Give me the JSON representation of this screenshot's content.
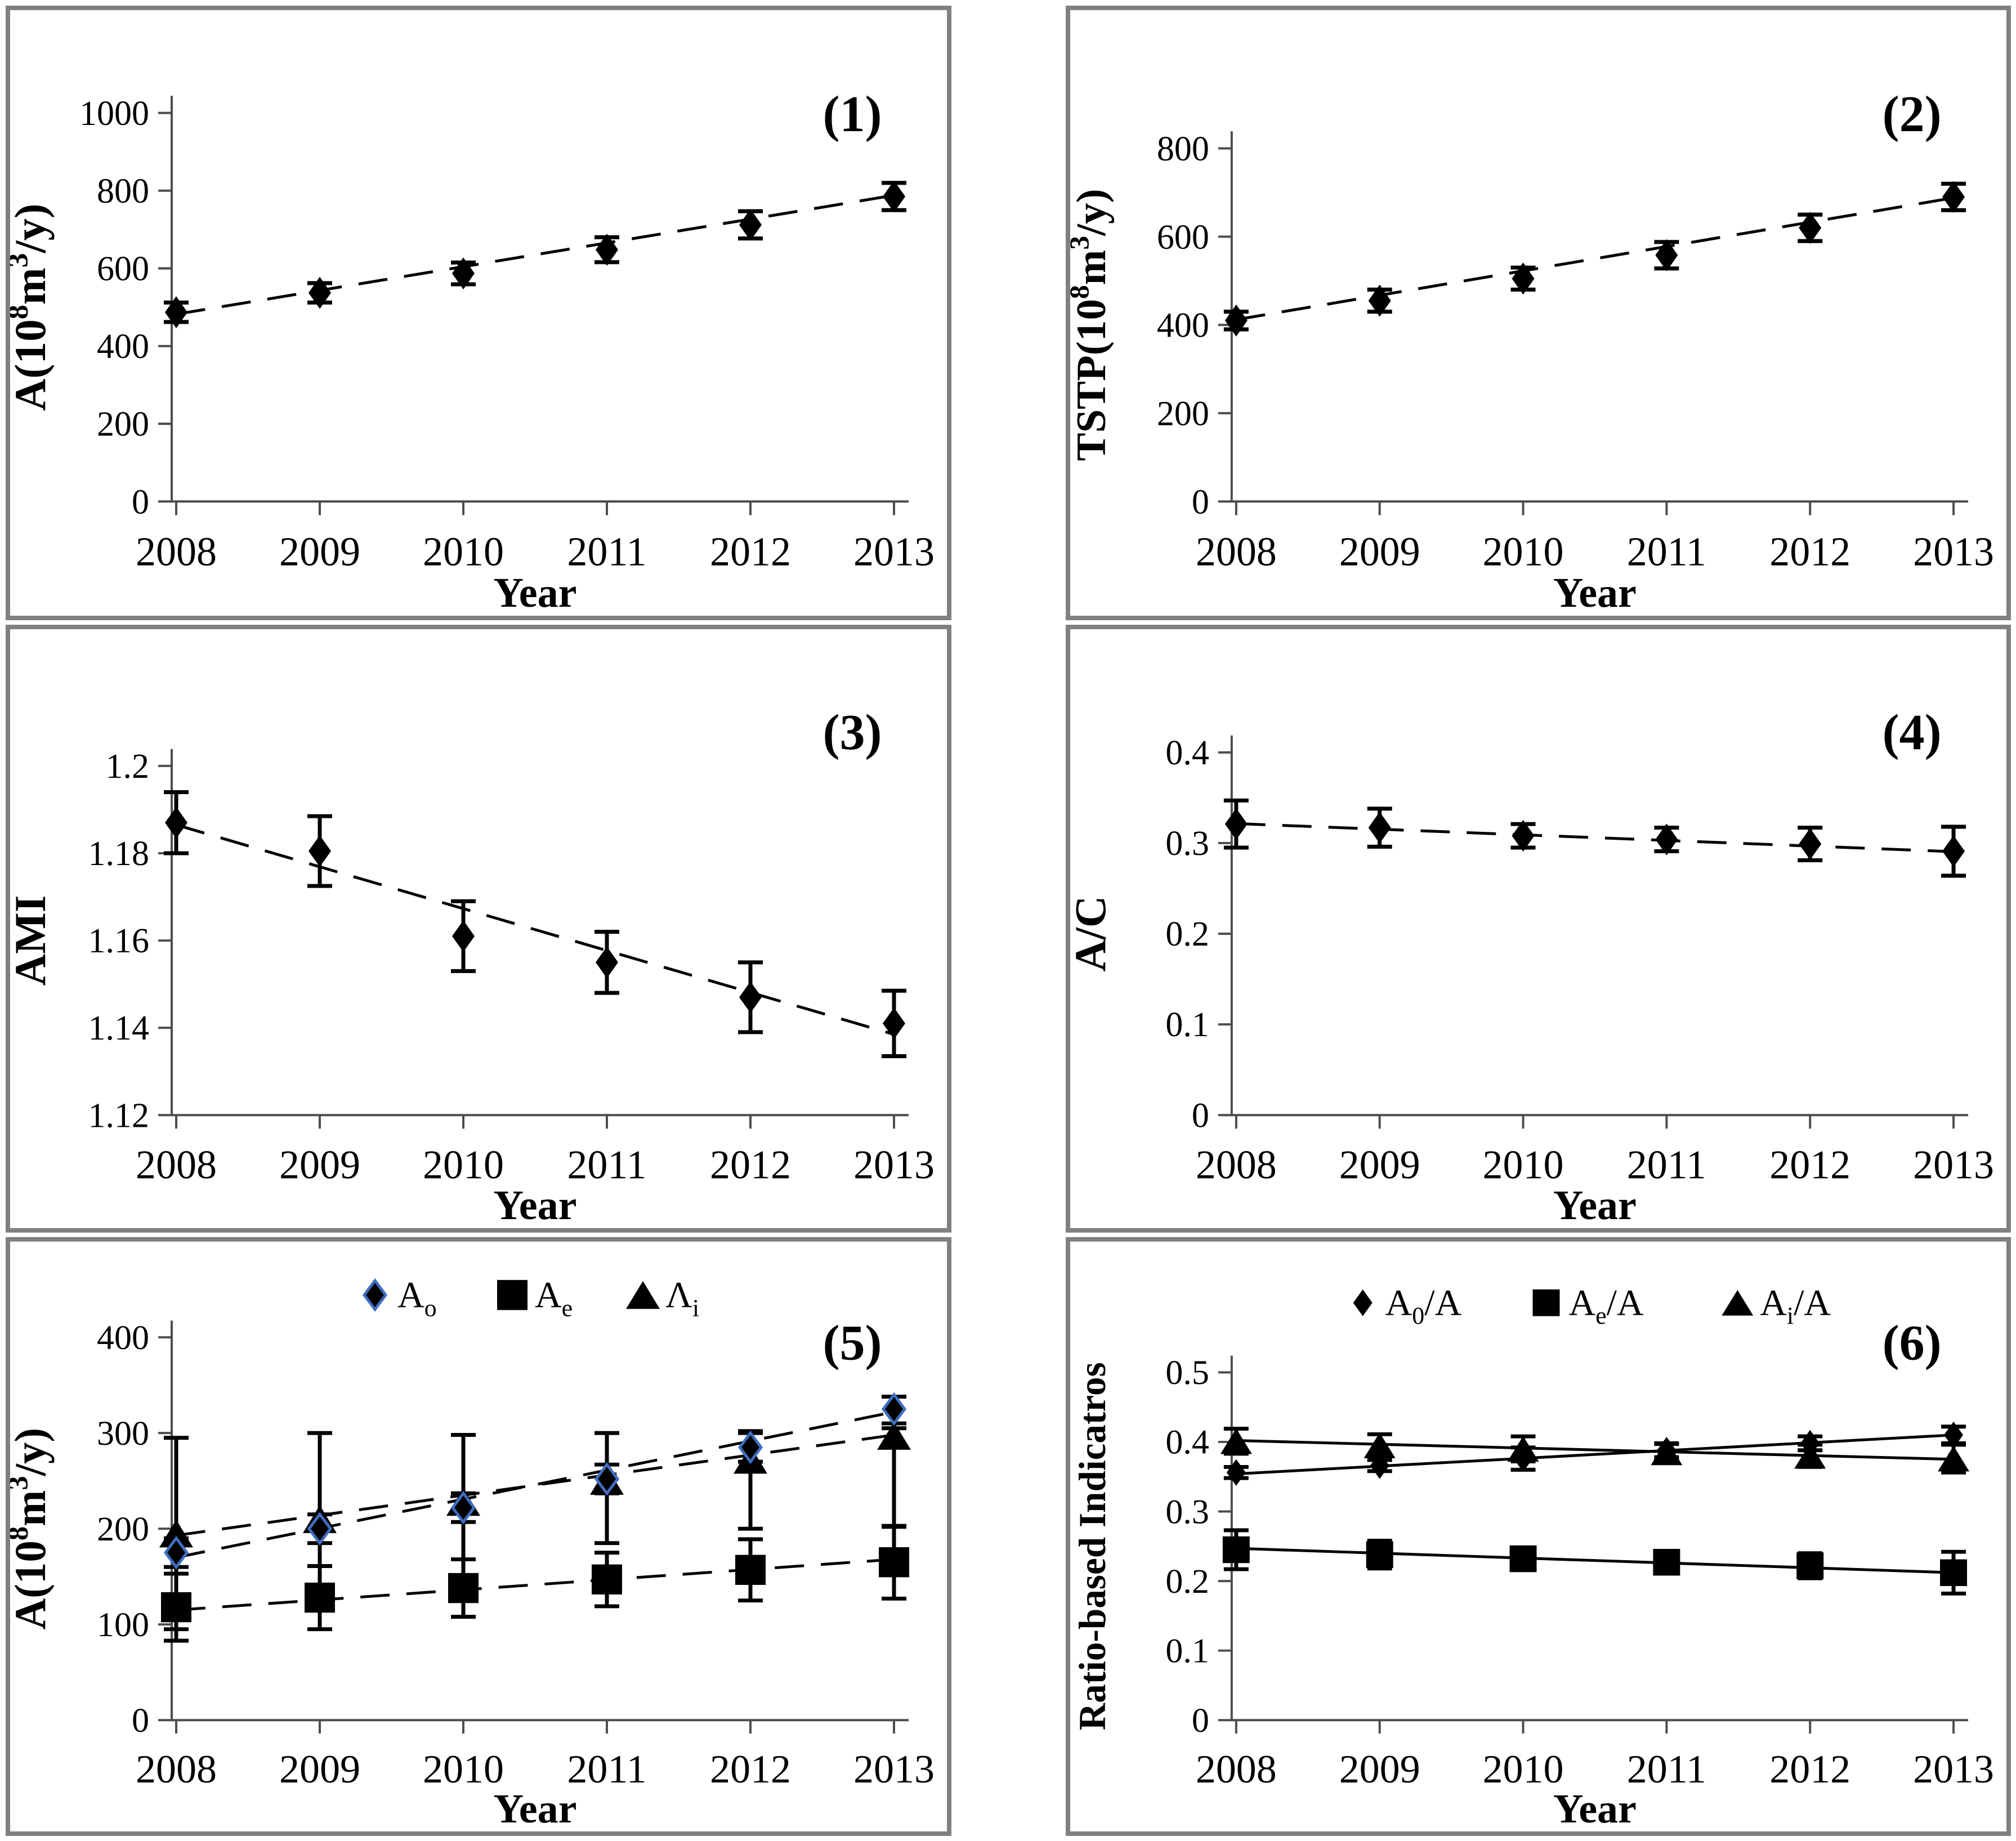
{
  "figure": {
    "background": "#ffffff",
    "panel_border_color": "#808080",
    "axis_color": "#4d4d4d",
    "ink_color": "#000000",
    "diamond_edge_blue": "#3f6ec0"
  },
  "chart_data": [
    {
      "panel_label": "(1)",
      "type": "line",
      "xlabel": "Year",
      "ylabel_segments": [
        {
          "t": "A(10"
        },
        {
          "t": "8",
          "sup": true
        },
        {
          "t": "m"
        },
        {
          "t": "3",
          "sup": true
        },
        {
          "t": "/y)"
        }
      ],
      "x_categories": [
        "2008",
        "2009",
        "2010",
        "2011",
        "2012",
        "2013"
      ],
      "ylim": [
        0,
        1000
      ],
      "yticks": [
        {
          "v": 0,
          "t": "0"
        },
        {
          "v": 200,
          "t": "200"
        },
        {
          "v": 400,
          "t": "400"
        },
        {
          "v": 600,
          "t": "600"
        },
        {
          "v": 800,
          "t": "800"
        },
        {
          "v": 1000,
          "t": "1000"
        }
      ],
      "grid": false,
      "legend": null,
      "series": [
        {
          "name": "A",
          "marker": "diamond",
          "values": [
            487,
            537,
            587,
            648,
            712,
            785
          ],
          "err_lo": [
            25,
            25,
            28,
            32,
            35,
            35
          ],
          "err_hi": [
            25,
            25,
            28,
            32,
            35,
            35
          ],
          "trend": {
            "from": 482,
            "to": 788,
            "dashed": true
          }
        }
      ]
    },
    {
      "panel_label": "(2)",
      "type": "line",
      "xlabel": "Year",
      "ylabel_segments": [
        {
          "t": "TSTP(10"
        },
        {
          "t": "8",
          "sup": true
        },
        {
          "t": "m"
        },
        {
          "t": "3",
          "sup": true
        },
        {
          "t": "/y)"
        }
      ],
      "x_categories": [
        "2008",
        "2009",
        "2010",
        "2011",
        "2012",
        "2013"
      ],
      "ylim": [
        0,
        800
      ],
      "yticks": [
        {
          "v": 0,
          "t": "0"
        },
        {
          "v": 200,
          "t": "200"
        },
        {
          "v": 400,
          "t": "400"
        },
        {
          "v": 600,
          "t": "600"
        },
        {
          "v": 800,
          "t": "800"
        }
      ],
      "grid": false,
      "legend": null,
      "series": [
        {
          "name": "TSTP",
          "marker": "diamond",
          "values": [
            410,
            455,
            505,
            558,
            620,
            690
          ],
          "err_lo": [
            20,
            25,
            25,
            30,
            30,
            30
          ],
          "err_hi": [
            20,
            25,
            25,
            30,
            30,
            30
          ],
          "trend": {
            "from": 412,
            "to": 688,
            "dashed": true
          }
        }
      ]
    },
    {
      "panel_label": "(3)",
      "type": "line",
      "xlabel": "Year",
      "ylabel_segments": [
        {
          "t": "AMI"
        }
      ],
      "x_categories": [
        "2008",
        "2009",
        "2010",
        "2011",
        "2012",
        "2013"
      ],
      "ylim": [
        1.12,
        1.2
      ],
      "yticks": [
        {
          "v": 1.12,
          "t": "1.12"
        },
        {
          "v": 1.14,
          "t": "1.14"
        },
        {
          "v": 1.16,
          "t": "1.16"
        },
        {
          "v": 1.18,
          "t": "1.18"
        },
        {
          "v": 1.2,
          "t": "1.2"
        }
      ],
      "grid": false,
      "legend": null,
      "series": [
        {
          "name": "AMI",
          "marker": "diamond",
          "values": [
            1.187,
            1.1805,
            1.161,
            1.155,
            1.147,
            1.141
          ],
          "err_lo": [
            0.007,
            0.008,
            0.008,
            0.007,
            0.008,
            0.0075
          ],
          "err_hi": [
            0.007,
            0.008,
            0.008,
            0.007,
            0.008,
            0.0075
          ],
          "trend": {
            "from": 1.1865,
            "to": 1.1385,
            "dashed": true
          }
        }
      ]
    },
    {
      "panel_label": "(4)",
      "type": "line",
      "xlabel": "Year",
      "ylabel_segments": [
        {
          "t": "A/C"
        }
      ],
      "x_categories": [
        "2008",
        "2009",
        "2010",
        "2011",
        "2012",
        "2013"
      ],
      "ylim": [
        0,
        0.4
      ],
      "yticks": [
        {
          "v": 0,
          "t": "0"
        },
        {
          "v": 0.1,
          "t": "0.1"
        },
        {
          "v": 0.2,
          "t": "0.2"
        },
        {
          "v": 0.3,
          "t": "0.3"
        },
        {
          "v": 0.4,
          "t": "0.4"
        }
      ],
      "grid": false,
      "legend": null,
      "series": [
        {
          "name": "A/C",
          "marker": "diamond",
          "values": [
            0.321,
            0.317,
            0.308,
            0.304,
            0.299,
            0.291
          ],
          "err_lo": [
            0.026,
            0.021,
            0.013,
            0.013,
            0.018,
            0.027
          ],
          "err_hi": [
            0.026,
            0.021,
            0.013,
            0.013,
            0.018,
            0.027
          ],
          "trend": {
            "from": 0.3215,
            "to": 0.2905,
            "dashed": true
          }
        }
      ]
    },
    {
      "panel_label": "(5)",
      "type": "line",
      "xlabel": "Year",
      "ylabel_segments": [
        {
          "t": "A(10"
        },
        {
          "t": "8",
          "sup": true
        },
        {
          "t": "m"
        },
        {
          "t": "3",
          "sup": true
        },
        {
          "t": "/y)"
        }
      ],
      "x_categories": [
        "2008",
        "2009",
        "2010",
        "2011",
        "2012",
        "2013"
      ],
      "ylim": [
        0,
        400
      ],
      "yticks": [
        {
          "v": 0,
          "t": "0"
        },
        {
          "v": 100,
          "t": "100"
        },
        {
          "v": 200,
          "t": "200"
        },
        {
          "v": 300,
          "t": "300"
        },
        {
          "v": 400,
          "t": "400"
        }
      ],
      "grid": false,
      "legend": [
        {
          "marker": "diamond",
          "marker_stroke": "#3f6ec0",
          "label_segments": [
            {
              "t": "A"
            },
            {
              "t": "o",
              "sub": true
            }
          ]
        },
        {
          "marker": "square",
          "label_segments": [
            {
              "t": "A"
            },
            {
              "t": "e",
              "sub": true
            }
          ]
        },
        {
          "marker": "triangle",
          "label_segments": [
            {
              "t": "Λ"
            },
            {
              "t": "i",
              "sub": true
            }
          ]
        }
      ],
      "series": [
        {
          "name": "Ai",
          "marker": "triangle",
          "values": [
            195,
            210,
            228,
            250,
            272,
            297
          ],
          "err_lo": [
            100,
            95,
            90,
            65,
            72,
            95
          ],
          "err_hi": [
            100,
            90,
            70,
            50,
            30,
            8
          ],
          "trend": {
            "from": 193,
            "to": 298,
            "dashed": true
          }
        },
        {
          "name": "Ae",
          "marker": "square",
          "values": [
            118,
            128,
            138,
            147,
            157,
            165
          ],
          "err_lo": [
            35,
            33,
            30,
            28,
            32,
            38
          ],
          "err_hi": [
            35,
            33,
            30,
            28,
            32,
            38
          ],
          "trend": {
            "from": 115,
            "to": 168,
            "dashed": true
          }
        },
        {
          "name": "Ao",
          "marker": "diamond",
          "marker_stroke": "#3f6ec0",
          "values": [
            175,
            200,
            222,
            252,
            285,
            325
          ],
          "err_lo": [
            15,
            15,
            15,
            15,
            15,
            15
          ],
          "err_hi": [
            15,
            15,
            15,
            15,
            15,
            13
          ],
          "trend": {
            "from": 170,
            "to": 322,
            "dashed": true
          }
        }
      ]
    },
    {
      "panel_label": "(6)",
      "type": "line",
      "xlabel": "Year",
      "ylabel_segments": [
        {
          "t": "Ratio-based Indicatros"
        }
      ],
      "x_categories": [
        "2008",
        "2009",
        "2010",
        "2011",
        "2012",
        "2013"
      ],
      "ylim": [
        0,
        0.5
      ],
      "yticks": [
        {
          "v": 0,
          "t": "0"
        },
        {
          "v": 0.1,
          "t": "0.1"
        },
        {
          "v": 0.2,
          "t": "0.2"
        },
        {
          "v": 0.3,
          "t": "0.3"
        },
        {
          "v": 0.4,
          "t": "0.4"
        },
        {
          "v": 0.5,
          "t": "0.5"
        }
      ],
      "grid": false,
      "legend": [
        {
          "marker": "diamond",
          "label_segments": [
            {
              "t": "A"
            },
            {
              "t": "0",
              "sub": true
            },
            {
              "t": "/A"
            }
          ]
        },
        {
          "marker": "square",
          "label_segments": [
            {
              "t": "A"
            },
            {
              "t": "e",
              "sub": true
            },
            {
              "t": "/A"
            }
          ]
        },
        {
          "marker": "triangle",
          "label_segments": [
            {
              "t": "A"
            },
            {
              "t": "i",
              "sub": true
            },
            {
              "t": "/A"
            }
          ]
        }
      ],
      "series": [
        {
          "name": "Ai/A",
          "marker": "triangle",
          "values": [
            0.401,
            0.395,
            0.39,
            0.385,
            0.38,
            0.376
          ],
          "err_lo": [
            0.018,
            0.016,
            0.018,
            0.012,
            0.016,
            0.02
          ],
          "err_hi": [
            0.018,
            0.016,
            0.018,
            0.012,
            0.016,
            0.02
          ],
          "trend": {
            "from": 0.402,
            "to": 0.375,
            "dashed": false
          }
        },
        {
          "name": "Ae/A",
          "marker": "square",
          "values": [
            0.245,
            0.238,
            0.232,
            0.227,
            0.222,
            0.212
          ],
          "err_lo": [
            0.028,
            0.02,
            0.015,
            0.012,
            0.018,
            0.03
          ],
          "err_hi": [
            0.028,
            0.02,
            0.015,
            0.012,
            0.018,
            0.03
          ],
          "trend": {
            "from": 0.247,
            "to": 0.212,
            "dashed": false
          }
        },
        {
          "name": "Ao/A",
          "marker": "diamond",
          "values": [
            0.356,
            0.366,
            0.376,
            0.388,
            0.398,
            0.41
          ],
          "err_lo": [
            0.008,
            0.008,
            0.016,
            0.01,
            0.01,
            0.012
          ],
          "err_hi": [
            0.008,
            0.008,
            0.016,
            0.01,
            0.01,
            0.012
          ],
          "trend": {
            "from": 0.354,
            "to": 0.41,
            "dashed": false
          }
        }
      ]
    }
  ]
}
